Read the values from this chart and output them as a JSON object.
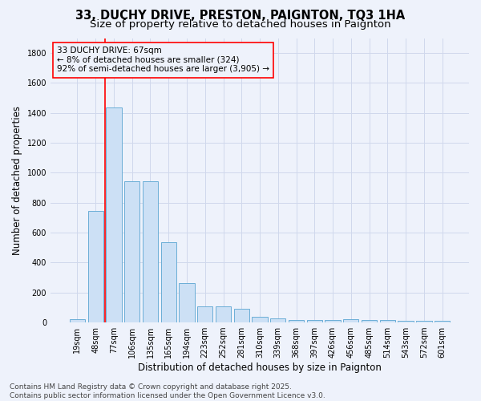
{
  "title": "33, DUCHY DRIVE, PRESTON, PAIGNTON, TQ3 1HA",
  "subtitle": "Size of property relative to detached houses in Paignton",
  "xlabel": "Distribution of detached houses by size in Paignton",
  "ylabel": "Number of detached properties",
  "categories": [
    "19sqm",
    "48sqm",
    "77sqm",
    "106sqm",
    "135sqm",
    "165sqm",
    "194sqm",
    "223sqm",
    "252sqm",
    "281sqm",
    "310sqm",
    "339sqm",
    "368sqm",
    "397sqm",
    "426sqm",
    "456sqm",
    "485sqm",
    "514sqm",
    "543sqm",
    "572sqm",
    "601sqm"
  ],
  "values": [
    20,
    745,
    1435,
    945,
    945,
    535,
    265,
    108,
    108,
    92,
    38,
    28,
    15,
    15,
    15,
    20,
    15,
    15,
    10,
    10,
    10
  ],
  "bar_color": "#cce0f5",
  "bar_edge_color": "#6baed6",
  "annotation_box_text": "33 DUCHY DRIVE: 67sqm\n← 8% of detached houses are smaller (324)\n92% of semi-detached houses are larger (3,905) →",
  "annotation_line_color": "red",
  "annotation_box_edge_color": "red",
  "red_line_x": 1.5,
  "footer_line1": "Contains HM Land Registry data © Crown copyright and database right 2025.",
  "footer_line2": "Contains public sector information licensed under the Open Government Licence v3.0.",
  "background_color": "#eef2fb",
  "grid_color": "#d0d8ec",
  "ylim": [
    0,
    1900
  ],
  "title_fontsize": 10.5,
  "subtitle_fontsize": 9.5,
  "axis_label_fontsize": 8.5,
  "tick_fontsize": 7,
  "footer_fontsize": 6.5,
  "annotation_fontsize": 7.5
}
